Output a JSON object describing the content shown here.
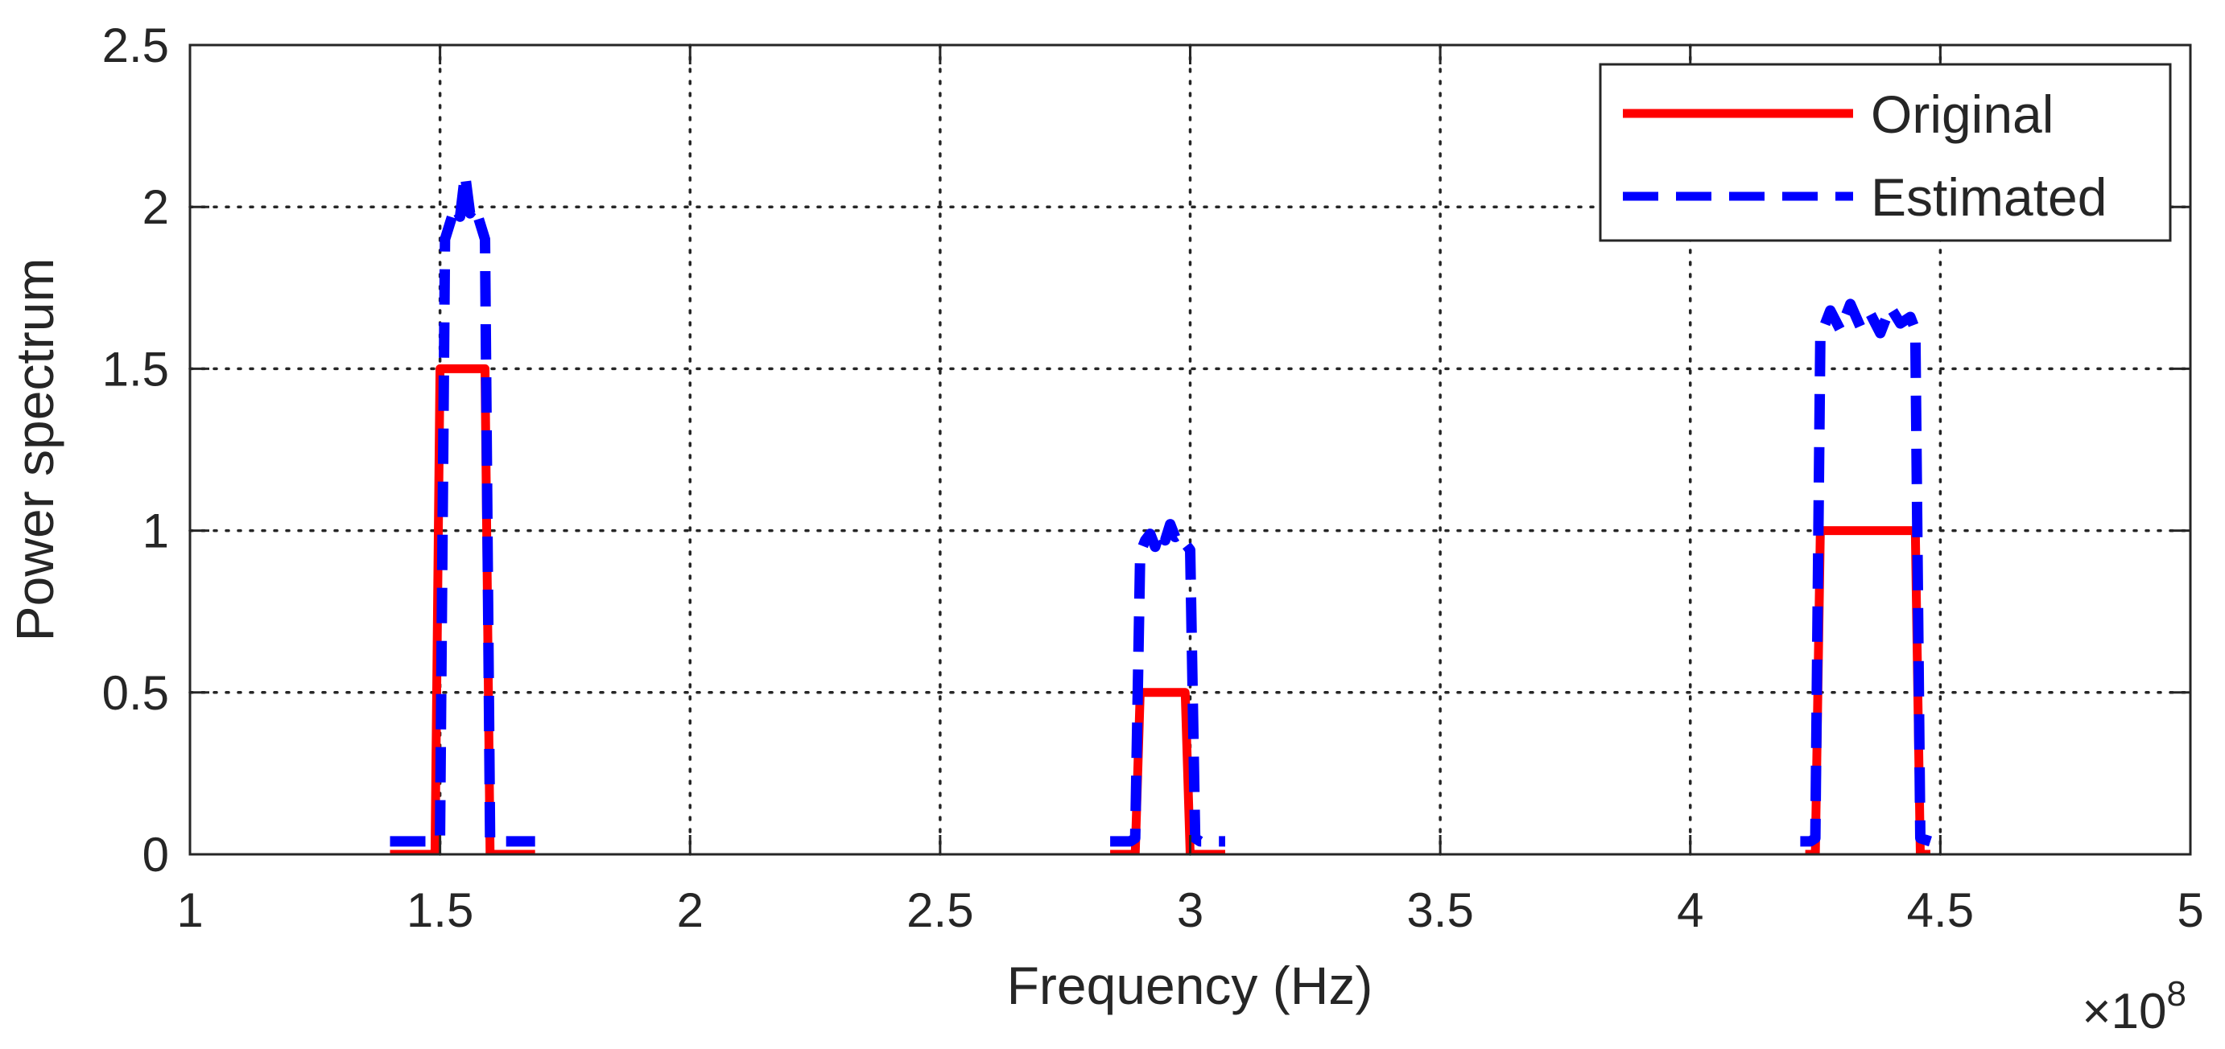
{
  "chart_data": {
    "type": "line",
    "title": "",
    "xlabel": "Frequency (Hz)",
    "ylabel": "Power spectrum",
    "x_exponent_label": "×10",
    "x_exponent_power": "8",
    "xlim": [
      1,
      5
    ],
    "ylim": [
      0,
      2.5
    ],
    "x_ticks": [
      1,
      1.5,
      2,
      2.5,
      3,
      3.5,
      4,
      4.5,
      5
    ],
    "x_tick_labels": [
      "1",
      "1.5",
      "2",
      "2.5",
      "3",
      "3.5",
      "4",
      "4.5",
      "5"
    ],
    "y_ticks": [
      0,
      0.5,
      1,
      1.5,
      2,
      2.5
    ],
    "y_tick_labels": [
      "0",
      "0.5",
      "1",
      "1.5",
      "2",
      "2.5"
    ],
    "grid": true,
    "legend_position": "top-right",
    "series": [
      {
        "name": "Original",
        "color": "#ff0000",
        "style": "solid",
        "segments": [
          {
            "x": [
              1.4,
              1.49,
              1.5,
              1.59,
              1.6,
              1.69
            ],
            "y": [
              0,
              0,
              1.5,
              1.5,
              0,
              0
            ]
          },
          {
            "x": [
              2.84,
              2.89,
              2.9,
              2.99,
              3.0,
              3.07
            ],
            "y": [
              0,
              0,
              0.5,
              0.5,
              0,
              0
            ]
          },
          {
            "x": [
              4.23,
              4.25,
              4.26,
              4.45,
              4.46,
              4.48
            ],
            "y": [
              0,
              0,
              1.0,
              1.0,
              0,
              0
            ]
          }
        ]
      },
      {
        "name": "Estimated",
        "color": "#0000ff",
        "style": "dashed",
        "segments": [
          {
            "x": [
              1.4,
              1.48,
              1.5,
              1.51,
              1.52,
              1.53,
              1.54,
              1.55,
              1.56,
              1.57,
              1.58,
              1.59,
              1.6,
              1.61,
              1.69
            ],
            "y": [
              0.04,
              0.04,
              0.05,
              1.9,
              1.95,
              2.0,
              1.97,
              2.1,
              1.98,
              2.0,
              1.95,
              1.9,
              0.05,
              0.04,
              0.04
            ]
          },
          {
            "x": [
              2.84,
              2.88,
              2.89,
              2.9,
              2.91,
              2.92,
              2.93,
              2.94,
              2.95,
              2.96,
              2.97,
              2.98,
              2.99,
              3.0,
              3.01,
              3.02,
              3.07
            ],
            "y": [
              0.04,
              0.04,
              0.05,
              0.93,
              0.97,
              0.99,
              0.95,
              1.0,
              0.97,
              1.02,
              0.98,
              0.99,
              0.96,
              0.94,
              0.05,
              0.04,
              0.04
            ]
          },
          {
            "x": [
              4.22,
              4.24,
              4.25,
              4.26,
              4.28,
              4.3,
              4.32,
              4.34,
              4.36,
              4.38,
              4.4,
              4.42,
              4.44,
              4.45,
              4.46,
              4.48
            ],
            "y": [
              0.04,
              0.04,
              0.05,
              1.6,
              1.68,
              1.62,
              1.7,
              1.63,
              1.67,
              1.61,
              1.69,
              1.64,
              1.66,
              1.62,
              0.05,
              0.04
            ]
          }
        ]
      }
    ]
  }
}
